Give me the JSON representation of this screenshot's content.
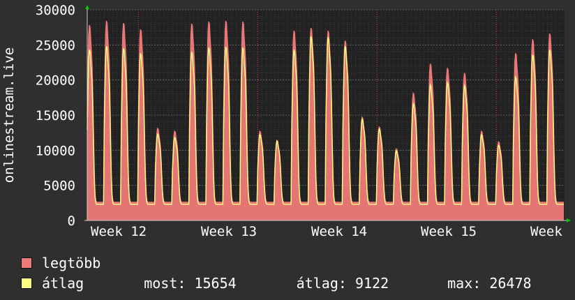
{
  "chart_data": {
    "type": "area",
    "ylabel": "onlinestream.live",
    "ylim": [
      0,
      30000
    ],
    "yticks": [
      0,
      5000,
      10000,
      15000,
      20000,
      25000,
      30000
    ],
    "ytick_labels": [
      "0",
      "5000",
      "10000",
      "15000",
      "20000",
      "25000",
      "30000"
    ],
    "xtick_labels": [
      "Week 12",
      "Week 13",
      "Week 14",
      "Week 15",
      "Week"
    ],
    "x_days": 28,
    "grid": true,
    "series": [
      {
        "name": "legtöbb",
        "color": "#f07a7a",
        "daily_values": [
          27800,
          28400,
          28100,
          27200,
          13100,
          12700,
          28000,
          28300,
          28400,
          28300,
          12700,
          11400,
          27000,
          27400,
          27000,
          25600,
          14700,
          13300,
          10200,
          18100,
          22300,
          21700,
          21000,
          12700,
          11200,
          23800,
          25800,
          26600
        ]
      },
      {
        "name": "átlag",
        "color": "#ffff80",
        "daily_values": [
          24300,
          24800,
          24500,
          23800,
          12300,
          11800,
          24000,
          24600,
          24700,
          24600,
          12200,
          11300,
          24300,
          26200,
          26100,
          24800,
          14400,
          13000,
          9900,
          16600,
          19300,
          19600,
          19200,
          12200,
          10700,
          20400,
          23600,
          24300
        ]
      }
    ]
  },
  "legend": {
    "max_label": "legtöbb",
    "avg_label": "átlag",
    "now_text": "most: 15654",
    "avg_text": "átlag: 9122",
    "max_text": "max: 26478"
  },
  "colors": {
    "background": "#2f2f2f",
    "plot_background": "#222222",
    "grid": "#4a4a4a",
    "week_grid": "#d53d3d",
    "arrow": "#00cc00"
  }
}
